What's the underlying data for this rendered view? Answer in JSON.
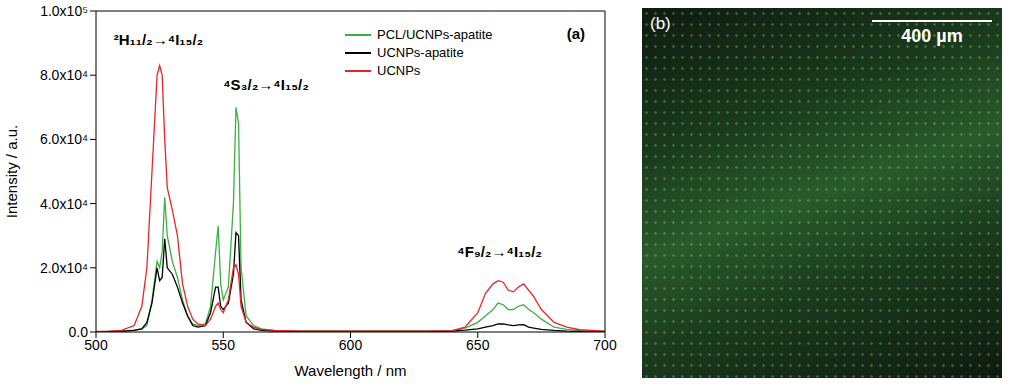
{
  "chart_data": {
    "type": "line",
    "x_label": "Wavelength / nm",
    "y_label": "Intensity / a.u.",
    "x": [
      500,
      505,
      510,
      515,
      518,
      520,
      522,
      524,
      525,
      526,
      527,
      528,
      530,
      532,
      534,
      536,
      538,
      540,
      543,
      545,
      547,
      548,
      549,
      550,
      552,
      554,
      555,
      556,
      557,
      559,
      562,
      565,
      570,
      580,
      590,
      600,
      610,
      620,
      630,
      640,
      645,
      650,
      653,
      656,
      658,
      660,
      662,
      664,
      666,
      668,
      670,
      672,
      675,
      680,
      685,
      690,
      700
    ],
    "series": [
      {
        "name": "PCL/UCNPs-apatite",
        "color": "#3cb043",
        "values": [
          100,
          200,
          300,
          600,
          1000,
          2000,
          10000,
          22000,
          20000,
          25000,
          42000,
          30000,
          22000,
          17000,
          10000,
          5000,
          2500,
          2000,
          2500,
          8000,
          25000,
          33000,
          15000,
          10000,
          14000,
          40000,
          70000,
          65000,
          20000,
          5000,
          2000,
          1000,
          500,
          300,
          300,
          300,
          300,
          300,
          300,
          400,
          1200,
          3000,
          5000,
          7000,
          9000,
          8500,
          7000,
          7000,
          8000,
          8500,
          7000,
          6000,
          4000,
          1500,
          800,
          400,
          200
        ]
      },
      {
        "name": "UCNPs-apatite",
        "color": "#000000",
        "values": [
          100,
          100,
          200,
          500,
          1000,
          3000,
          9000,
          20000,
          16000,
          17000,
          29000,
          20000,
          18000,
          14000,
          9000,
          5000,
          2000,
          1500,
          2000,
          6000,
          14000,
          14000,
          8000,
          7000,
          9000,
          18000,
          31000,
          30000,
          10000,
          3000,
          1000,
          500,
          300,
          200,
          200,
          200,
          200,
          200,
          200,
          300,
          600,
          1000,
          1500,
          2000,
          2500,
          2500,
          2200,
          2000,
          2200,
          2300,
          1500,
          1200,
          800,
          500,
          300,
          200,
          100
        ]
      },
      {
        "name": "UCNPs",
        "color": "#e8262a",
        "values": [
          200,
          300,
          500,
          2000,
          8000,
          20000,
          50000,
          80000,
          83000,
          80000,
          60000,
          45000,
          38000,
          30000,
          15000,
          8000,
          4000,
          2500,
          2000,
          4000,
          8000,
          9000,
          7000,
          6000,
          10000,
          20000,
          21000,
          18000,
          8000,
          3000,
          1500,
          800,
          500,
          300,
          300,
          300,
          300,
          300,
          300,
          400,
          1500,
          6000,
          12000,
          15000,
          16000,
          15500,
          13000,
          12500,
          14000,
          15000,
          13000,
          11000,
          7000,
          3000,
          1500,
          700,
          300
        ]
      }
    ],
    "xlim": [
      500,
      700
    ],
    "xticks": [
      500,
      550,
      600,
      650,
      700
    ],
    "ylim": [
      0,
      100000
    ],
    "yticks": [
      {
        "value": 0,
        "label": "0.0"
      },
      {
        "value": 20000,
        "label": "2.0x10⁴"
      },
      {
        "value": 40000,
        "label": "4.0x10⁴"
      },
      {
        "value": 60000,
        "label": "6.0x10⁴"
      },
      {
        "value": 80000,
        "label": "8.0x10⁴"
      },
      {
        "value": 100000,
        "label": "1.0x10⁵"
      }
    ],
    "annotations": [
      {
        "text": "²H₁₁/₂→⁴I₁₅/₂",
        "x": 505,
        "y": 91000
      },
      {
        "text": "⁴S₃/₂→⁴I₁₅/₂",
        "x": 548,
        "y": 77000
      },
      {
        "text": "⁴F₉/₂→⁴I₁₅/₂",
        "x": 640,
        "y": 25000
      },
      {
        "text": "(a)",
        "x": 683,
        "y": 93000
      }
    ],
    "legend": "upper right",
    "grid": false
  },
  "panel_b": {
    "label": "(b)",
    "scale_bar": "400 µm"
  }
}
